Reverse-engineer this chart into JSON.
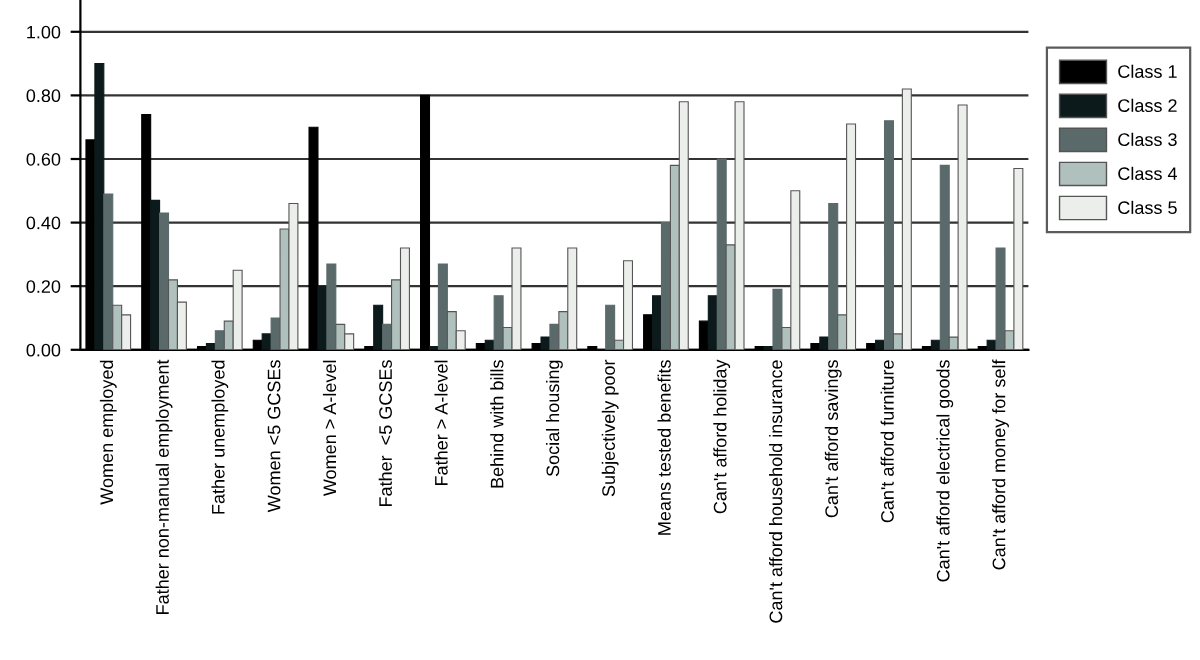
{
  "chart_data": {
    "type": "bar",
    "categories": [
      "Women employed",
      "Father non-manual employment",
      "Father unemployed",
      "Women <5 GCSEs",
      "Women > A-level",
      "Father  <5 GCSEs",
      "Father > A-level",
      "Behind with bills",
      "Social housing",
      "Subjectively poor",
      "Means tested benefits",
      "Can't afford holiday",
      "Can't afford household insurance",
      "Can't afford savings",
      "Can't afford furniture",
      "Can't afford electrical goods",
      "Can't afford money for self"
    ],
    "series": [
      {
        "name": "Class 1",
        "color": "#000000",
        "values": [
          0.66,
          0.74,
          0.01,
          0.03,
          0.7,
          0.01,
          0.8,
          0.02,
          0.02,
          0.01,
          0.11,
          0.09,
          0.01,
          0.02,
          0.02,
          0.01,
          0.01
        ]
      },
      {
        "name": "Class 2",
        "color": "#0c1a1c",
        "values": [
          0.9,
          0.47,
          0.02,
          0.05,
          0.2,
          0.14,
          0.01,
          0.03,
          0.04,
          0.0,
          0.17,
          0.17,
          0.01,
          0.04,
          0.03,
          0.03,
          0.03
        ]
      },
      {
        "name": "Class 3",
        "color": "#5a6a6a",
        "values": [
          0.49,
          0.43,
          0.06,
          0.1,
          0.27,
          0.08,
          0.27,
          0.17,
          0.08,
          0.14,
          0.4,
          0.6,
          0.19,
          0.46,
          0.72,
          0.58,
          0.32
        ]
      },
      {
        "name": "Class 4",
        "color": "#b0c0bc",
        "values": [
          0.14,
          0.22,
          0.09,
          0.38,
          0.08,
          0.22,
          0.12,
          0.07,
          0.12,
          0.03,
          0.58,
          0.33,
          0.07,
          0.11,
          0.05,
          0.04,
          0.06
        ]
      },
      {
        "name": "Class 5",
        "color": "#eceeec",
        "values": [
          0.11,
          0.15,
          0.25,
          0.46,
          0.05,
          0.32,
          0.06,
          0.32,
          0.32,
          0.28,
          0.78,
          0.78,
          0.5,
          0.71,
          0.82,
          0.77,
          0.57
        ]
      }
    ],
    "ylim": [
      0,
      1.1
    ],
    "yticks": [
      {
        "value": 0,
        "label": "0.00"
      },
      {
        "value": 0.2,
        "label": "0.20"
      },
      {
        "value": 0.4,
        "label": "0.40"
      },
      {
        "value": 0.6,
        "label": "0.60"
      },
      {
        "value": 0.8,
        "label": "0.80"
      },
      {
        "value": 1.0,
        "label": "1.00"
      }
    ],
    "grid": "y",
    "legend": "right"
  }
}
